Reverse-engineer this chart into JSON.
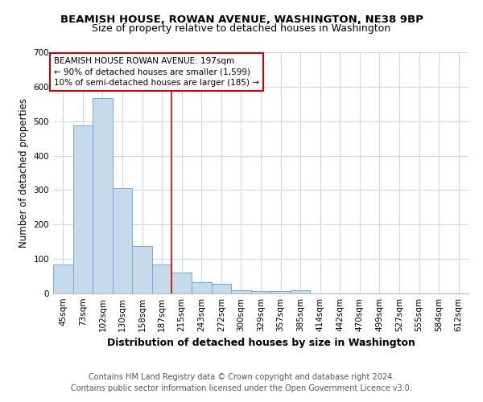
{
  "title1": "BEAMISH HOUSE, ROWAN AVENUE, WASHINGTON, NE38 9BP",
  "title2": "Size of property relative to detached houses in Washington",
  "xlabel": "Distribution of detached houses by size in Washington",
  "ylabel": "Number of detached properties",
  "footnote1": "Contains HM Land Registry data © Crown copyright and database right 2024.",
  "footnote2": "Contains public sector information licensed under the Open Government Licence v3.0.",
  "annotation_lines": [
    "BEAMISH HOUSE ROWAN AVENUE: 197sqm",
    "← 90% of detached houses are smaller (1,599)",
    "10% of semi-detached houses are larger (185) →"
  ],
  "bin_labels": [
    "45sqm",
    "73sqm",
    "102sqm",
    "130sqm",
    "158sqm",
    "187sqm",
    "215sqm",
    "243sqm",
    "272sqm",
    "300sqm",
    "329sqm",
    "357sqm",
    "385sqm",
    "414sqm",
    "442sqm",
    "470sqm",
    "499sqm",
    "527sqm",
    "555sqm",
    "584sqm",
    "612sqm"
  ],
  "bar_heights": [
    83,
    487,
    567,
    305,
    137,
    85,
    60,
    33,
    27,
    10,
    8,
    8,
    10,
    0,
    0,
    0,
    0,
    0,
    0,
    0,
    0
  ],
  "bar_color": "#c5daea",
  "bar_edge_color": "#6baed6",
  "red_line_x": 5.5,
  "red_line_color": "#cc0000",
  "annotation_box_color": "#cc0000",
  "ylim": [
    0,
    700
  ],
  "yticks": [
    0,
    100,
    200,
    300,
    400,
    500,
    600,
    700
  ],
  "bg_color": "#ffffff",
  "grid_color": "#ccd8e8",
  "title1_fontsize": 9.5,
  "title2_fontsize": 9,
  "xlabel_fontsize": 9,
  "ylabel_fontsize": 8.5,
  "tick_fontsize": 7.5,
  "annotation_fontsize": 7.5,
  "footnote_fontsize": 7
}
